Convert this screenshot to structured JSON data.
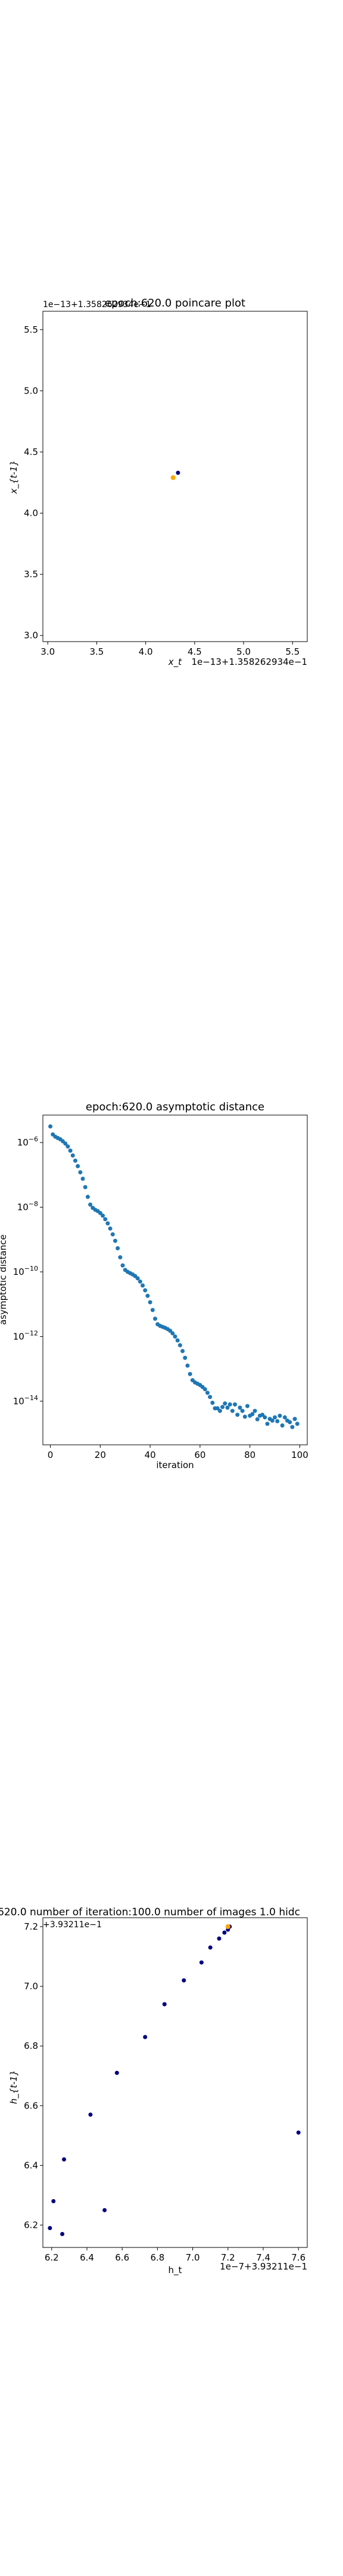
{
  "chart_data": [
    {
      "type": "scatter",
      "title": "epoch:620.0 poincare plot",
      "xlabel": "x_t",
      "ylabel": "x_{t-1}",
      "x_offset_text": "1e−13+1.358262934e−1",
      "y_offset_text": "1e−13+1.358262934e−1",
      "xlim": [
        2.95,
        5.65
      ],
      "ylim": [
        2.95,
        5.65
      ],
      "xticks": [
        "3.0",
        "3.5",
        "4.0",
        "4.5",
        "5.0",
        "5.5"
      ],
      "yticks": [
        "3.0",
        "3.5",
        "4.0",
        "4.5",
        "5.0",
        "5.5"
      ],
      "points": [
        [
          4.33,
          4.33
        ]
      ],
      "highlight_points": [
        [
          4.28,
          4.29
        ]
      ],
      "grid": false
    },
    {
      "type": "scatter",
      "title": "epoch:620.0 asymptotic distance",
      "xlabel": "iteration",
      "ylabel": "asymptotic distance",
      "y_scale": "log",
      "xlim": [
        -3,
        103
      ],
      "ylim_log10": [
        -15.35,
        -5.15
      ],
      "xticks": [
        "0",
        "20",
        "40",
        "60",
        "80",
        "100"
      ],
      "yticks_log": [
        -6,
        -8,
        -10,
        -12,
        -14
      ],
      "x": [
        0,
        1,
        2,
        3,
        4,
        5,
        6,
        7,
        8,
        9,
        10,
        11,
        12,
        13,
        14,
        15,
        16,
        17,
        18,
        19,
        20,
        21,
        22,
        23,
        24,
        25,
        26,
        27,
        28,
        29,
        30,
        31,
        32,
        33,
        34,
        35,
        36,
        37,
        38,
        39,
        40,
        41,
        42,
        43,
        44,
        45,
        46,
        47,
        48,
        49,
        50,
        51,
        52,
        53,
        54,
        55,
        56,
        57,
        58,
        59,
        60,
        61,
        62,
        63,
        64,
        65,
        66,
        67,
        68,
        69,
        70,
        71,
        72,
        73,
        74,
        75,
        76,
        77,
        78,
        79,
        80,
        81,
        82,
        83,
        84,
        85,
        86,
        87,
        88,
        89,
        90,
        91,
        92,
        93,
        94,
        95,
        96,
        97,
        98,
        99
      ],
      "log10_y": [
        -5.5,
        -5.75,
        -5.82,
        -5.86,
        -5.9,
        -5.96,
        -6.03,
        -6.12,
        -6.25,
        -6.4,
        -6.56,
        -6.73,
        -6.92,
        -7.12,
        -7.38,
        -7.68,
        -7.92,
        -8.02,
        -8.08,
        -8.12,
        -8.18,
        -8.26,
        -8.37,
        -8.5,
        -8.66,
        -8.84,
        -9.04,
        -9.27,
        -9.55,
        -9.8,
        -9.94,
        -10.0,
        -10.04,
        -10.08,
        -10.13,
        -10.2,
        -10.3,
        -10.42,
        -10.57,
        -10.74,
        -10.94,
        -11.18,
        -11.45,
        -11.62,
        -11.67,
        -11.7,
        -11.73,
        -11.77,
        -11.82,
        -11.9,
        -12.0,
        -12.12,
        -12.27,
        -12.45,
        -12.66,
        -12.9,
        -13.16,
        -13.35,
        -13.42,
        -13.46,
        -13.5,
        -13.56,
        -13.63,
        -13.74,
        -13.87,
        -14.05,
        -14.22,
        -14.22,
        -14.3,
        -14.18,
        -14.07,
        -14.2,
        -14.1,
        -14.3,
        -14.1,
        -14.42,
        -14.2,
        -14.3,
        -14.48,
        -14.15,
        -14.45,
        -14.4,
        -14.3,
        -14.56,
        -14.45,
        -14.42,
        -14.5,
        -14.7,
        -14.55,
        -14.6,
        -14.5,
        -14.62,
        -14.45,
        -14.75,
        -14.5,
        -14.6,
        -14.65,
        -14.8,
        -14.55,
        -14.7
      ],
      "grid": false
    },
    {
      "type": "scatter",
      "title_left": "620.0",
      "title_middle": "number of iteration:100.0  number of images 1.0 hidc",
      "xlabel": "h_t",
      "ylabel": "h_{t-1}",
      "x_offset_text": "1e−7+3.93211e−1",
      "y_offset_text": "+3.93211e−1",
      "xlim": [
        6.15,
        7.65
      ],
      "ylim": [
        6.125,
        7.23
      ],
      "xticks": [
        "6.2",
        "6.4",
        "6.6",
        "6.8",
        "7.0",
        "7.2",
        "7.4",
        "7.6"
      ],
      "yticks": [
        "6.2",
        "6.4",
        "6.6",
        "6.8",
        "7.0",
        "7.2"
      ],
      "points": [
        [
          6.19,
          6.19
        ],
        [
          6.21,
          6.28
        ],
        [
          6.26,
          6.17
        ],
        [
          6.27,
          6.42
        ],
        [
          6.42,
          6.57
        ],
        [
          6.5,
          6.25
        ],
        [
          6.57,
          6.71
        ],
        [
          6.73,
          6.83
        ],
        [
          6.84,
          6.94
        ],
        [
          6.95,
          7.02
        ],
        [
          7.05,
          7.08
        ],
        [
          7.1,
          7.13
        ],
        [
          7.15,
          7.16
        ],
        [
          7.18,
          7.18
        ],
        [
          7.2,
          7.19
        ],
        [
          7.21,
          7.2
        ],
        [
          7.6,
          6.51
        ]
      ],
      "highlight_points": [
        [
          7.2,
          7.2
        ]
      ],
      "grid": false
    }
  ]
}
